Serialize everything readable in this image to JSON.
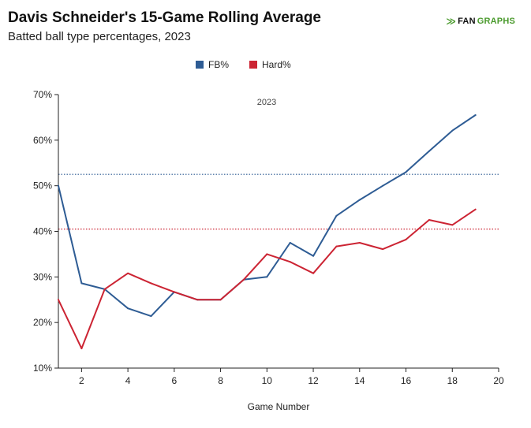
{
  "title": "Davis Schneider's 15-Game Rolling Average",
  "subtitle": "Batted ball type percentages, 2023",
  "brand": {
    "mark": "≫",
    "part1": "FAN",
    "part2": "GRAPHS"
  },
  "colors": {
    "fb": "#2e5c94",
    "hard": "#cc2433",
    "axis": "#222222"
  },
  "chart_data": {
    "type": "line",
    "xlabel": "Game Number",
    "ylabel": "",
    "annotation": "2023",
    "xlim": [
      1,
      20
    ],
    "ylim": [
      10,
      70
    ],
    "xticks": [
      2,
      4,
      6,
      8,
      10,
      12,
      14,
      16,
      18,
      20
    ],
    "yticks": [
      10,
      20,
      30,
      40,
      50,
      60,
      70
    ],
    "ytick_suffix": "%",
    "legend_position": "top-center",
    "series": [
      {
        "name": "FB%",
        "color": "#2e5c94",
        "x": [
          1,
          2,
          3,
          4,
          5,
          6,
          7,
          8,
          9,
          10,
          11,
          12,
          13,
          14,
          15,
          16,
          17,
          18,
          19
        ],
        "values": [
          50.0,
          28.6,
          27.3,
          23.1,
          21.4,
          26.7,
          25.0,
          25.0,
          29.4,
          30.0,
          37.5,
          34.6,
          43.4,
          46.9,
          50.0,
          53.0,
          57.6,
          62.1,
          65.5
        ],
        "mean": 52.5
      },
      {
        "name": "Hard%",
        "color": "#cc2433",
        "x": [
          1,
          2,
          3,
          4,
          5,
          6,
          7,
          8,
          9,
          10,
          11,
          12,
          13,
          14,
          15,
          16,
          17,
          18,
          19
        ],
        "values": [
          25.0,
          14.3,
          27.3,
          30.8,
          28.6,
          26.7,
          25.0,
          25.0,
          29.4,
          35.0,
          33.3,
          30.8,
          36.7,
          37.5,
          36.1,
          38.2,
          42.5,
          41.4,
          44.8
        ],
        "mean": 40.5
      }
    ]
  }
}
